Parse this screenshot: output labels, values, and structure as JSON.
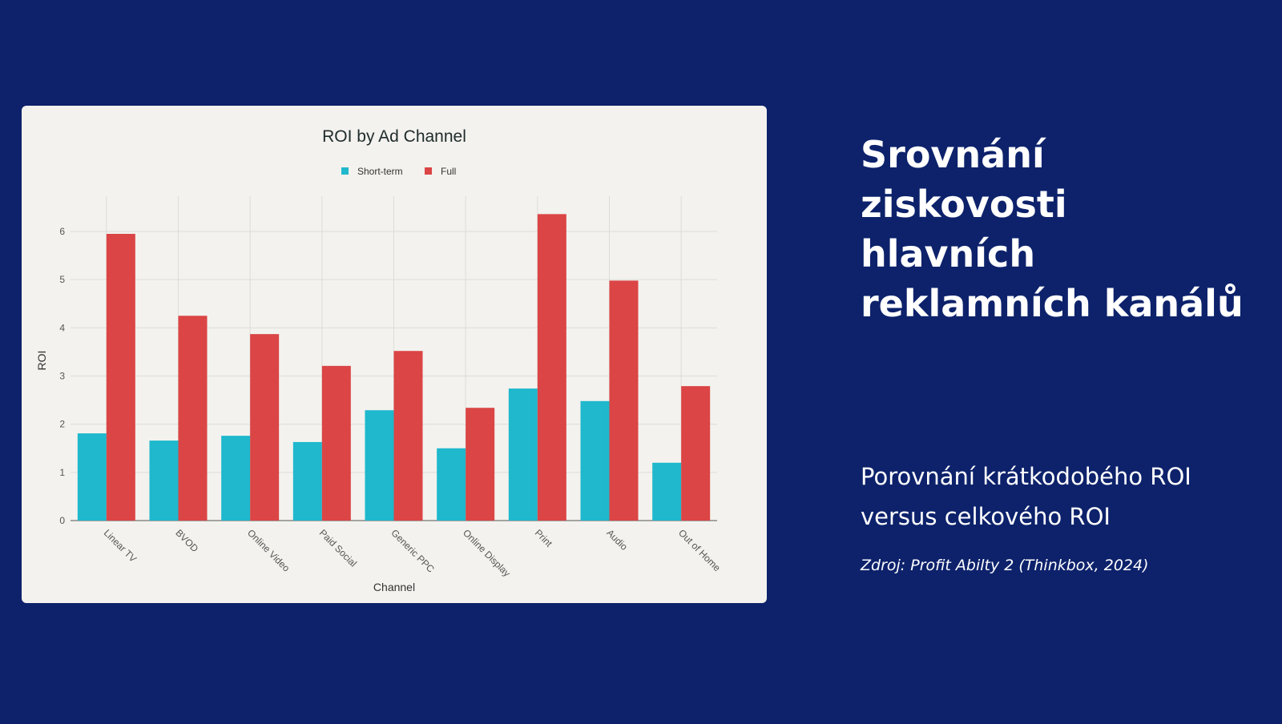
{
  "slide": {
    "title": "Srovnání ziskovosti hlavních reklamních kanálů",
    "subtitle": "Porovnání krátkodobého ROI versus celkového ROI",
    "source": "Zdroj: Profit Abilty 2 (Thinkbox, 2024)"
  },
  "colors": {
    "short": "#1fb8cd",
    "full": "#db4545",
    "background": "#0d226b"
  },
  "chart_data": {
    "type": "bar",
    "title": "ROI by Ad Channel",
    "xlabel": "Channel",
    "ylabel": "ROI",
    "ylim": [
      0,
      6.5
    ],
    "yticks": [
      0,
      1,
      2,
      3,
      4,
      5,
      6
    ],
    "legend": "top-center",
    "grid": true,
    "categories": [
      "Linear TV",
      "BVOD",
      "Online Video",
      "Paid Social",
      "Generic PPC",
      "Online Display",
      "Print",
      "Audio",
      "Out of Home"
    ],
    "series": [
      {
        "name": "Short-term",
        "values": [
          1.81,
          1.66,
          1.76,
          1.63,
          2.29,
          1.5,
          2.74,
          2.48,
          1.2
        ]
      },
      {
        "name": "Full",
        "values": [
          5.95,
          4.25,
          3.87,
          3.21,
          3.52,
          2.34,
          6.36,
          4.98,
          2.79
        ]
      }
    ]
  }
}
